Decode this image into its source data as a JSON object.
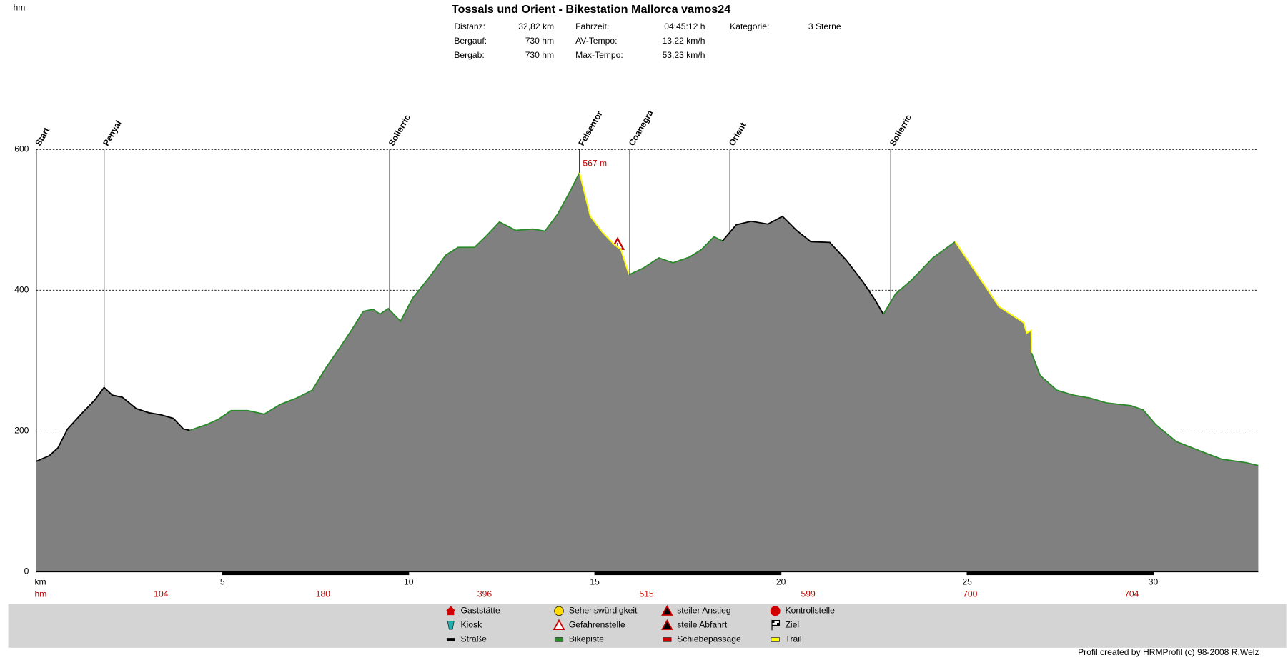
{
  "chart_data": {
    "type": "area",
    "title": "Tossals und Orient - Bikestation Mallorca vamos24",
    "stats": [
      [
        {
          "label": "Distanz:",
          "value": "32,82 km"
        },
        {
          "label": "Bergauf:",
          "value": "730 hm"
        },
        {
          "label": "Bergab:",
          "value": "730 hm"
        }
      ],
      [
        {
          "label": "Fahrzeit:",
          "value": "04:45:12 h"
        },
        {
          "label": "AV-Tempo:",
          "value": "13,22 km/h"
        },
        {
          "label": "Max-Tempo:",
          "value": "53,23 km/h"
        }
      ],
      [
        {
          "label": "Kategorie:",
          "value": "3 Sterne"
        }
      ]
    ],
    "y_label": "hm",
    "x_label": "km",
    "x": [
      0,
      0.35,
      0.58,
      0.84,
      1.24,
      1.57,
      1.82,
      2.04,
      2.31,
      2.68,
      3.02,
      3.35,
      3.68,
      3.95,
      4.12,
      4.57,
      4.9,
      5.23,
      5.68,
      6.12,
      6.56,
      7.0,
      7.41,
      7.78,
      8.12,
      8.45,
      8.78,
      9.05,
      9.23,
      9.45,
      9.78,
      10.11,
      10.55,
      11.0,
      11.33,
      11.77,
      12.1,
      12.44,
      12.88,
      13.33,
      13.66,
      14.0,
      14.33,
      14.59,
      14.88,
      15.21,
      15.54,
      15.7,
      15.92,
      16.32,
      16.72,
      17.1,
      17.54,
      17.87,
      18.2,
      18.43,
      18.8,
      19.2,
      19.65,
      20.04,
      20.42,
      20.8,
      21.31,
      21.75,
      22.2,
      22.53,
      22.75,
      23.08,
      23.52,
      24.08,
      24.68,
      25.19,
      25.85,
      26.52,
      26.6,
      26.72,
      26.73,
      26.96,
      27.41,
      27.85,
      28.29,
      28.74,
      29.4,
      29.73,
      30.07,
      30.62,
      31.29,
      31.84,
      32.5,
      32.82
    ],
    "values": [
      157,
      165,
      176,
      203,
      226,
      244,
      262,
      251,
      248,
      232,
      226,
      223,
      218,
      203,
      201,
      209,
      217,
      229,
      229,
      224,
      238,
      247,
      258,
      290,
      316,
      342,
      370,
      373,
      366,
      374,
      356,
      389,
      418,
      450,
      461,
      461,
      478,
      497,
      485,
      487,
      484,
      508,
      540,
      567,
      505,
      482,
      464,
      458,
      422,
      432,
      446,
      439,
      447,
      458,
      476,
      470,
      493,
      498,
      494,
      505,
      485,
      469,
      468,
      443,
      412,
      386,
      366,
      395,
      415,
      446,
      469,
      429,
      377,
      354,
      339,
      343,
      311,
      279,
      258,
      251,
      247,
      240,
      236,
      230,
      209,
      185,
      171,
      160,
      155,
      151
    ],
    "color": "#808080",
    "segment_colors": [
      "#000",
      "#000",
      "#000",
      "#000",
      "#000",
      "#000",
      "#000",
      "#000",
      "#000",
      "#000",
      "#000",
      "#000",
      "#000",
      "#000",
      "#2a8a2a",
      "#2a8a2a",
      "#2a8a2a",
      "#2a8a2a",
      "#2a8a2a",
      "#2a8a2a",
      "#2a8a2a",
      "#2a8a2a",
      "#2a8a2a",
      "#2a8a2a",
      "#2a8a2a",
      "#2a8a2a",
      "#2a8a2a",
      "#2a8a2a",
      "#2a8a2a",
      "#2a8a2a",
      "#2a8a2a",
      "#2a8a2a",
      "#2a8a2a",
      "#2a8a2a",
      "#2a8a2a",
      "#2a8a2a",
      "#2a8a2a",
      "#2a8a2a",
      "#2a8a2a",
      "#2a8a2a",
      "#2a8a2a",
      "#2a8a2a",
      "#2a8a2a",
      "#ff0",
      "#ff0",
      "#ff0",
      "#ff0",
      "#ff0",
      "#2a8a2a",
      "#2a8a2a",
      "#2a8a2a",
      "#2a8a2a",
      "#2a8a2a",
      "#2a8a2a",
      "#2a8a2a",
      "#000",
      "#000",
      "#000",
      "#000",
      "#000",
      "#000",
      "#000",
      "#000",
      "#000",
      "#000",
      "#000",
      "#2a8a2a",
      "#2a8a2a",
      "#2a8a2a",
      "#2a8a2a",
      "#ff0",
      "#ff0",
      "#ff0",
      "#ff0",
      "#ff0",
      "#ff0",
      "#2a8a2a",
      "#2a8a2a",
      "#2a8a2a",
      "#2a8a2a",
      "#2a8a2a",
      "#2a8a2a",
      "#2a8a2a",
      "#2a8a2a",
      "#2a8a2a",
      "#2a8a2a",
      "#2a8a2a",
      "#2a8a2a",
      "#2a8a2a"
    ],
    "xlim": [
      0,
      32.82
    ],
    "xticks": [
      5,
      10,
      15,
      20,
      25,
      30
    ],
    "ylim": [
      0,
      600
    ],
    "yticks": [
      0,
      200,
      400,
      600
    ],
    "grid": true,
    "waypoints": [
      {
        "name": "Start",
        "x": 0
      },
      {
        "name": "Penyal",
        "x": 1.82
      },
      {
        "name": "Sollerric",
        "x": 9.49
      },
      {
        "name": "Felsentor",
        "x": 14.59
      },
      {
        "name": "Coanegra",
        "x": 15.94
      },
      {
        "name": "Orient",
        "x": 18.63
      },
      {
        "name": "Sollerric",
        "x": 22.95
      }
    ],
    "annotation": {
      "value": 567,
      "label": "567 m",
      "x": 14.59
    },
    "ascent_row": {
      "label": "hm",
      "x": [
        3.35,
        7.7,
        12.04,
        16.39,
        20.73,
        25.08,
        29.42
      ],
      "values": [
        104,
        180,
        396,
        515,
        599,
        700,
        704
      ]
    },
    "legend": [
      "Gaststätte",
      "Kiosk",
      "Straße",
      "Sehenswürdigkeit",
      "Gefahrenstelle",
      "Bikepiste",
      "steiler Anstieg",
      "steile Abfahrt",
      "Schiebepassage",
      "Kontrollstelle",
      "Ziel",
      "Trail"
    ],
    "footer": "Profil created by HRMProfil (c) 98-2008 R.Welz"
  }
}
